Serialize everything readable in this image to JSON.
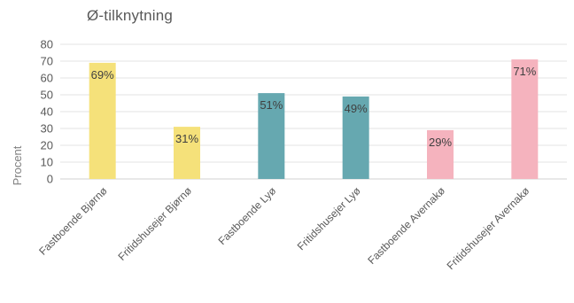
{
  "chart_data": {
    "type": "bar",
    "title": "Ø-tilknytning",
    "ylabel": "Procent",
    "xlabel": "",
    "ylim": [
      0,
      80
    ],
    "yticks": [
      0,
      10,
      20,
      30,
      40,
      50,
      60,
      70,
      80
    ],
    "grid": true,
    "categories": [
      "Fastboende Bjørnø",
      "Fritidshusejer Bjørnø",
      "Fastboende Lyø",
      "Fritidshusejer Lyø",
      "Fastboende Avernakø",
      "Fritidshusejer Avernakø"
    ],
    "values": [
      69,
      31,
      51,
      49,
      29,
      71
    ],
    "data_labels": [
      "69%",
      "31%",
      "51%",
      "49%",
      "29%",
      "71%"
    ],
    "colors": [
      "#f5e17a",
      "#f5e17a",
      "#66a8b0",
      "#66a8b0",
      "#f5b3be",
      "#f5b3be"
    ]
  }
}
